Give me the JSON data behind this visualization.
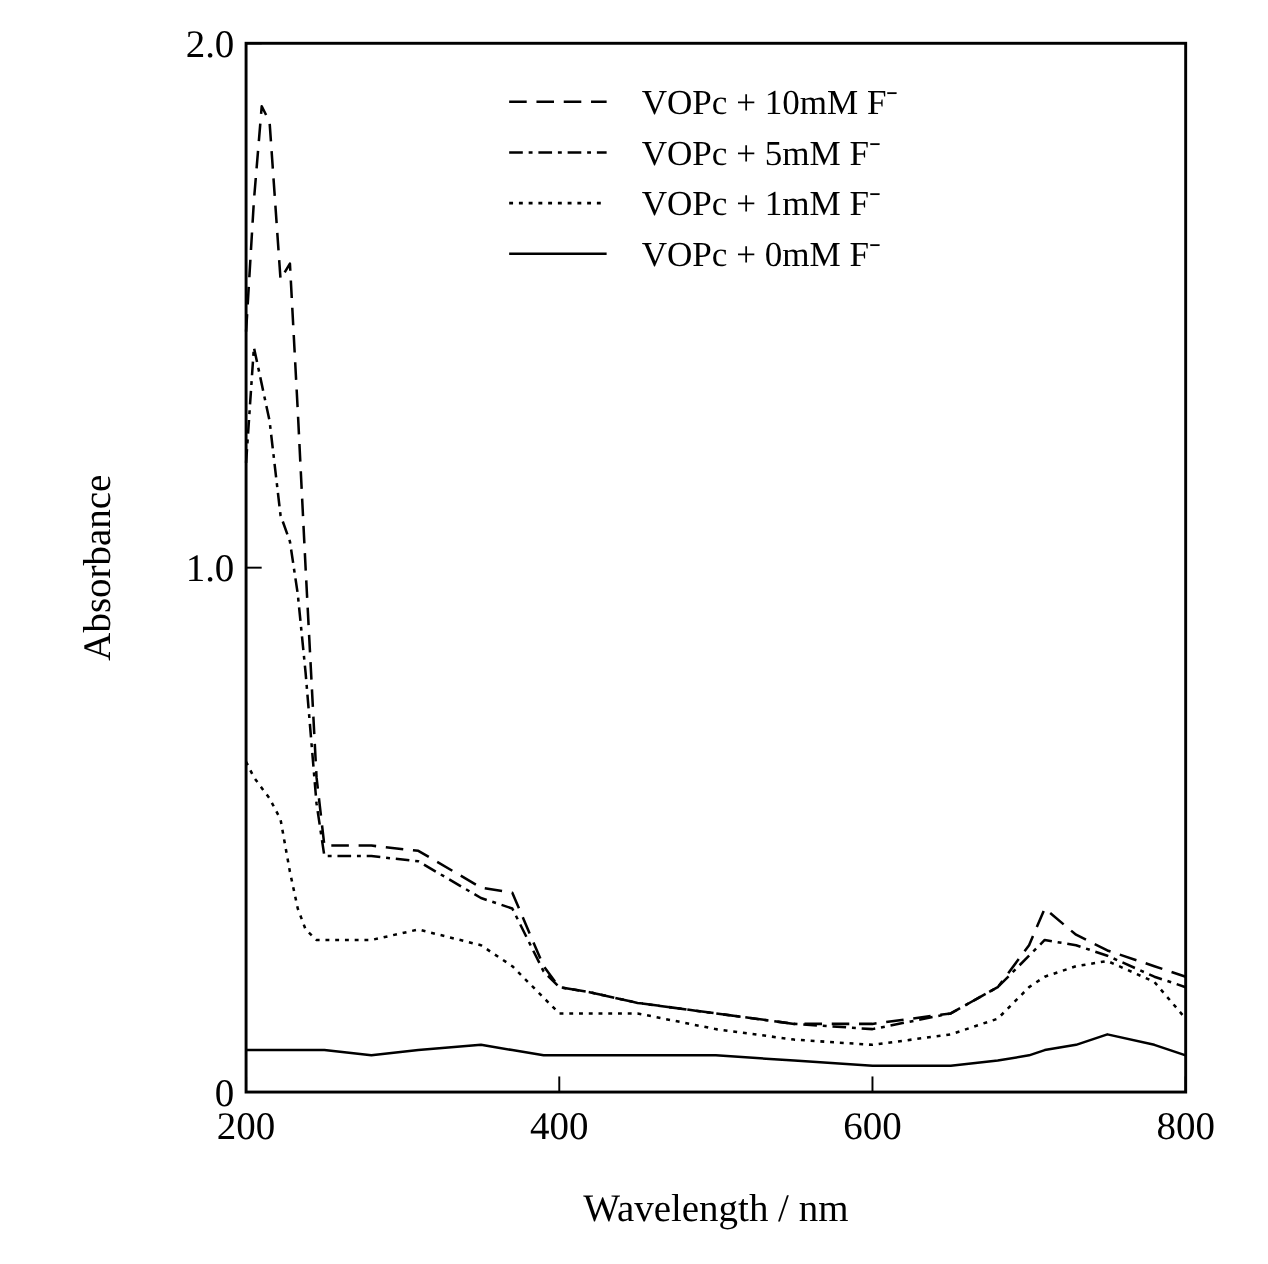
{
  "chart_data": {
    "type": "line",
    "xlabel": "Wavelength / nm",
    "ylabel": "Absorbance",
    "xlim": [
      200,
      800
    ],
    "ylim": [
      0,
      2
    ],
    "xticks": [
      200,
      400,
      600,
      800
    ],
    "yticks": [
      0,
      {
        "value": 1,
        "label": "1.0"
      },
      {
        "value": 2,
        "label": "2.0"
      }
    ],
    "grid": false,
    "legend": "top right",
    "x": [
      200,
      205,
      210,
      215,
      222,
      228,
      233,
      238,
      245,
      250,
      280,
      310,
      350,
      370,
      390,
      400,
      420,
      450,
      500,
      550,
      600,
      650,
      680,
      700,
      710,
      730,
      750,
      780,
      800
    ],
    "series": [
      {
        "name": "VOPc + 10mM F⁻",
        "color": "#000000",
        "line_style": "dashed",
        "values": [
          1.45,
          1.7,
          1.88,
          1.85,
          1.55,
          1.58,
          1.3,
          1.0,
          0.6,
          0.47,
          0.47,
          0.46,
          0.39,
          0.38,
          0.24,
          0.2,
          0.19,
          0.17,
          0.15,
          0.13,
          0.13,
          0.15,
          0.2,
          0.28,
          0.35,
          0.3,
          0.27,
          0.24,
          0.22
        ]
      },
      {
        "name": "VOPc + 5mM F⁻",
        "color": "#000000",
        "line_style": "dashdot",
        "values": [
          1.2,
          1.42,
          1.35,
          1.28,
          1.1,
          1.05,
          0.95,
          0.8,
          0.55,
          0.45,
          0.45,
          0.44,
          0.37,
          0.35,
          0.23,
          0.2,
          0.19,
          0.17,
          0.15,
          0.13,
          0.12,
          0.15,
          0.2,
          0.26,
          0.29,
          0.28,
          0.26,
          0.22,
          0.2
        ]
      },
      {
        "name": "VOPc + 1mM F⁻",
        "color": "#000000",
        "line_style": "dotted",
        "values": [
          0.63,
          0.6,
          0.58,
          0.56,
          0.52,
          0.42,
          0.35,
          0.31,
          0.29,
          0.29,
          0.29,
          0.31,
          0.28,
          0.24,
          0.18,
          0.15,
          0.15,
          0.15,
          0.12,
          0.1,
          0.09,
          0.11,
          0.14,
          0.2,
          0.22,
          0.24,
          0.25,
          0.21,
          0.14
        ]
      },
      {
        "name": "VOPc + 0mM F⁻",
        "color": "#000000",
        "line_style": "solid",
        "values": [
          0.08,
          0.08,
          0.08,
          0.08,
          0.08,
          0.08,
          0.08,
          0.08,
          0.08,
          0.08,
          0.07,
          0.08,
          0.09,
          0.08,
          0.07,
          0.07,
          0.07,
          0.07,
          0.07,
          0.06,
          0.05,
          0.05,
          0.06,
          0.07,
          0.08,
          0.09,
          0.11,
          0.09,
          0.07
        ]
      }
    ]
  }
}
